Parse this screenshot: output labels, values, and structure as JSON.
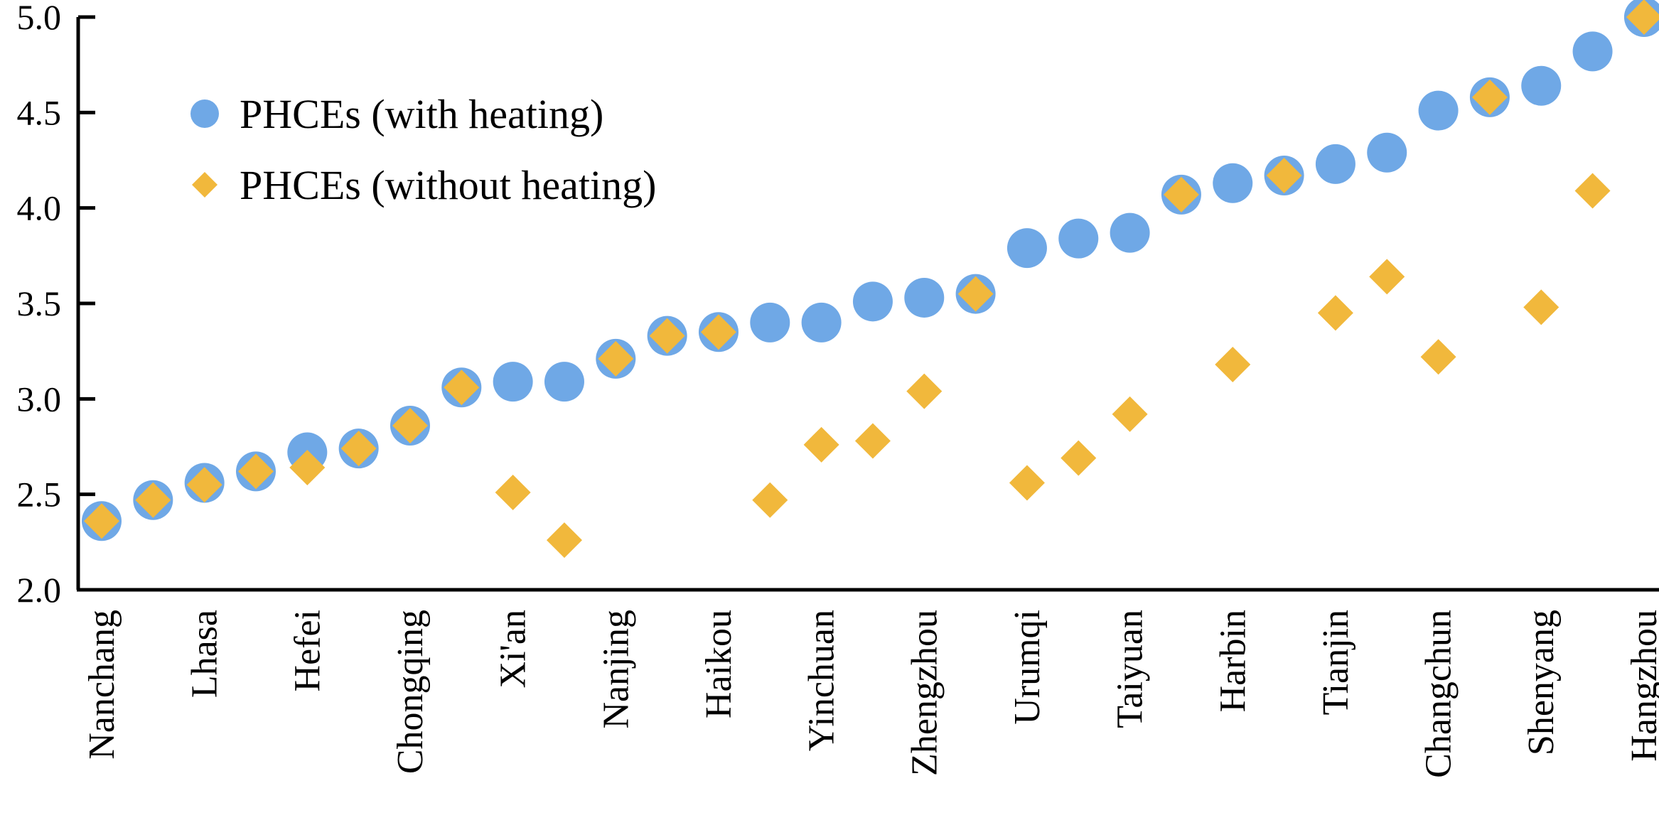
{
  "chart_data": {
    "type": "scatter",
    "ylim": [
      2.0,
      5.0
    ],
    "yticks": [
      "2.0",
      "2.5",
      "3.0",
      "3.5",
      "4.0",
      "4.5",
      "5.0"
    ],
    "grid": false,
    "legend_position": "top-left",
    "categories": [
      "Nanchang",
      "",
      "Lhasa",
      "",
      "Hefei",
      "",
      "Chongqing",
      "",
      "Xi'an",
      "",
      "Nanjing",
      "",
      "Haikou",
      "",
      "Yinchuan",
      "",
      "Zhengzhou",
      "",
      "Urumqi",
      "",
      "Taiyuan",
      "",
      "Harbin",
      "",
      "Tianjin",
      "",
      "Changchun",
      "",
      "Shenyang",
      "",
      "Hangzhou",
      ""
    ],
    "series": [
      {
        "name": "PHCEs (with heating)",
        "marker": "circle",
        "color": "#6fa8e6",
        "values": [
          2.36,
          2.47,
          2.56,
          2.62,
          2.72,
          2.74,
          2.86,
          3.06,
          3.09,
          3.09,
          3.21,
          3.33,
          3.35,
          3.4,
          3.4,
          3.51,
          3.53,
          3.55,
          3.79,
          3.84,
          3.87,
          4.07,
          4.13,
          4.17,
          4.23,
          4.29,
          4.51,
          4.58,
          4.64,
          4.82,
          5.0
        ]
      },
      {
        "name": "PHCEs (without heating)",
        "marker": "diamond",
        "color": "#f1b83c",
        "values": [
          2.36,
          2.47,
          2.55,
          2.62,
          2.64,
          2.74,
          2.86,
          3.06,
          2.51,
          2.26,
          3.21,
          3.33,
          3.35,
          2.47,
          2.76,
          2.78,
          3.04,
          3.55,
          2.56,
          2.69,
          2.92,
          4.07,
          3.18,
          4.17,
          3.45,
          3.64,
          3.22,
          4.58,
          3.48,
          4.09,
          5.0
        ]
      }
    ]
  }
}
